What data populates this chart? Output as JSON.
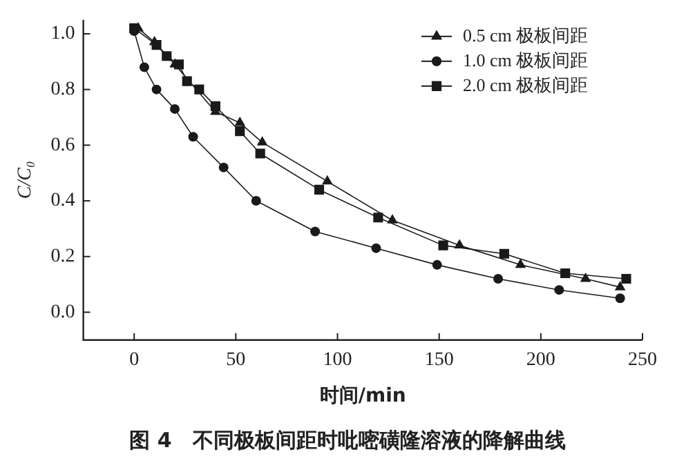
{
  "chart_data": {
    "type": "line",
    "xlabel": "时间/min",
    "ylabel": "C/C₀",
    "xlim": [
      -25,
      250
    ],
    "xticks": [
      0,
      50,
      100,
      150,
      200,
      250
    ],
    "ylim": [
      -0.1,
      1.05
    ],
    "yticks": [
      {
        "value": 0,
        "label": "0.0"
      },
      {
        "value": 0.2,
        "label": "0.2"
      },
      {
        "value": 0.4,
        "label": "0.4"
      },
      {
        "value": 0.6,
        "label": "0.6"
      },
      {
        "value": 0.8,
        "label": "0.8"
      },
      {
        "value": 1,
        "label": "1.0"
      }
    ],
    "grid": false,
    "legend": "top right",
    "line_style": "solid",
    "series": [
      {
        "name": "0.5 cm 极板间距",
        "color": "#1a1a1a",
        "marker": "triangle",
        "x": [
          2,
          10,
          20,
          40,
          52,
          63,
          95,
          127,
          160,
          190,
          222,
          239
        ],
        "values": [
          1.02,
          0.97,
          0.89,
          0.72,
          0.68,
          0.61,
          0.47,
          0.33,
          0.24,
          0.17,
          0.12,
          0.09
        ]
      },
      {
        "name": "1.0 cm 极板间距",
        "color": "#1a1a1a",
        "marker": "circle",
        "x": [
          0,
          5,
          11,
          20,
          29,
          44,
          60,
          89,
          119,
          149,
          179,
          209,
          239
        ],
        "values": [
          1.01,
          0.88,
          0.8,
          0.73,
          0.63,
          0.52,
          0.4,
          0.29,
          0.23,
          0.17,
          0.12,
          0.08,
          0.05
        ]
      },
      {
        "name": "2.0 cm 极板间距",
        "color": "#1a1a1a",
        "marker": "square",
        "x": [
          0,
          11,
          16,
          22,
          26,
          32,
          40,
          52,
          62,
          91,
          120,
          152,
          182,
          212,
          242
        ],
        "values": [
          1.02,
          0.96,
          0.92,
          0.89,
          0.83,
          0.8,
          0.74,
          0.65,
          0.57,
          0.44,
          0.34,
          0.24,
          0.21,
          0.14,
          0.12
        ]
      }
    ],
    "annotations": [
      "图 4　不同极板间距时吡嘧磺隆溶液的降解曲线"
    ]
  }
}
